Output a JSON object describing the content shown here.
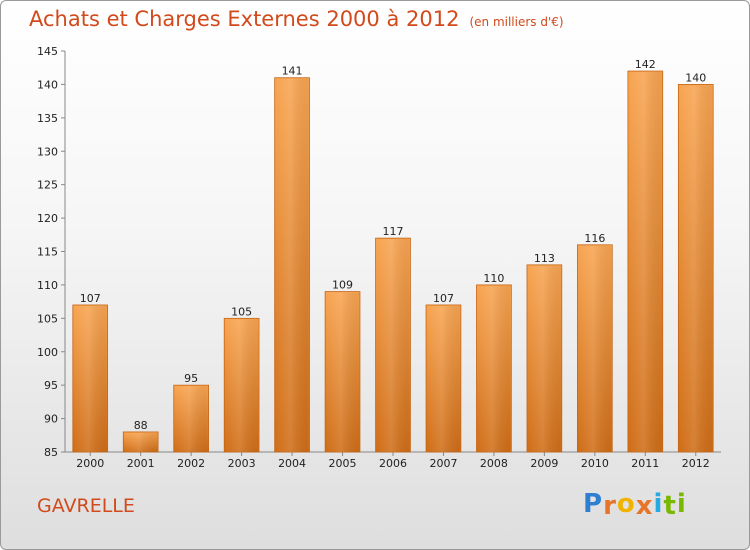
{
  "header": {
    "title": "Achats et Charges Externes 2000 à 2012",
    "subtitle": "(en milliers d'€)"
  },
  "footer": {
    "town": "GAVRELLE",
    "logo_letters": [
      "P",
      "r",
      "o",
      "x",
      "i",
      "t",
      "i"
    ],
    "logo_colors": [
      "#2f7fd1",
      "#e8742a",
      "#f0b400",
      "#e8742a",
      "#27a9e1",
      "#7ab800",
      "#7ab800"
    ]
  },
  "colors": {
    "bar_top": "#f8a552",
    "bar_bottom": "#d06e18",
    "text": "#222222",
    "accent": "#d24a1c"
  },
  "chart_data": {
    "type": "bar",
    "categories": [
      "2000",
      "2001",
      "2002",
      "2003",
      "2004",
      "2005",
      "2006",
      "2007",
      "2008",
      "2009",
      "2010",
      "2011",
      "2012"
    ],
    "values": [
      107,
      88,
      95,
      105,
      141,
      109,
      117,
      107,
      110,
      113,
      116,
      142,
      140
    ],
    "ylim": [
      85,
      145
    ],
    "yticks": [
      85,
      90,
      95,
      100,
      105,
      110,
      115,
      120,
      125,
      130,
      135,
      140,
      145
    ],
    "grid": false
  }
}
